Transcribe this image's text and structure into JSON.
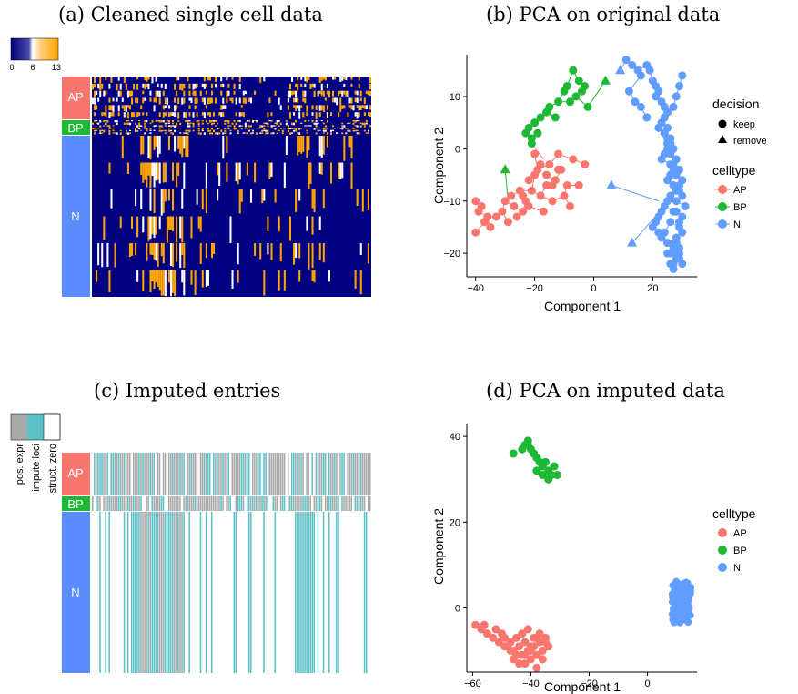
{
  "panels": {
    "a": {
      "title": "(a) Cleaned single cell data",
      "scale_ticks": [
        "0",
        "6",
        "13"
      ],
      "colors": {
        "low": "#000080",
        "mid": "#ffffff",
        "high": "#ffa500"
      },
      "groups": [
        {
          "label": "AP",
          "color": "#f8766d"
        },
        {
          "label": "BP",
          "color": "#1eb934"
        },
        {
          "label": "N",
          "color": "#5a8cff"
        }
      ]
    },
    "b": {
      "title": "(b) PCA on original data"
    },
    "c": {
      "title": "(c) Imputed entries",
      "legend_labels": [
        "pos. expr",
        "impute loci",
        "struct. zero"
      ],
      "colors": {
        "pos_expr": "#a9a9a9",
        "impute_loci": "#5bc2c7",
        "struct_zero": "#ffffff"
      },
      "groups": [
        {
          "label": "AP",
          "color": "#f8766d"
        },
        {
          "label": "BP",
          "color": "#1eb934"
        },
        {
          "label": "N",
          "color": "#5a8cff"
        }
      ]
    },
    "d": {
      "title": "(d) PCA on imputed data"
    }
  },
  "chart_data": [
    {
      "id": "heatmap-expression",
      "type": "heatmap",
      "title": "(a) Cleaned single cell data",
      "value_range": [
        0,
        13
      ],
      "row_groups": [
        "AP",
        "BP",
        "N"
      ]
    },
    {
      "id": "pca-original",
      "type": "scatter",
      "title": "(b) PCA on original data",
      "xlabel": "Component 1",
      "ylabel": "Component 2",
      "xlim": [
        -43,
        35
      ],
      "ylim": [
        -24.5,
        18
      ],
      "xticks": [
        -40,
        -20,
        0,
        20
      ],
      "yticks": [
        -20,
        -10,
        0,
        10
      ],
      "grid": false,
      "legend": {
        "shape_title": "decision",
        "shapes": [
          "keep",
          "remove"
        ],
        "color_title": "celltype",
        "colors": [
          {
            "name": "AP",
            "color": "#f8766d"
          },
          {
            "name": "BP",
            "color": "#1eb934"
          },
          {
            "name": "N",
            "color": "#619cff"
          }
        ]
      },
      "series": [
        {
          "name": "AP",
          "color": "#f8766d",
          "x": [
            -40,
            -38,
            -39,
            -36,
            -35,
            -37,
            -40,
            -33,
            -31,
            -29,
            -30,
            -28,
            -27,
            -25,
            -24,
            -26,
            -23,
            -21,
            -20,
            -22,
            -19,
            -18,
            -16,
            -15,
            -17,
            -13,
            -14,
            -12,
            -10,
            -11,
            -9,
            -7,
            -8,
            -5,
            -3,
            -20,
            -18,
            -16,
            -14,
            -12,
            -22,
            -24
          ],
          "y": [
            -10,
            -11,
            -12,
            -13,
            -15,
            -14,
            -16,
            -13,
            -12,
            -14,
            -10,
            -9,
            -11,
            -8,
            -12,
            -13,
            -10,
            -8,
            -5,
            -11,
            -4,
            -9,
            -7,
            -3,
            -12,
            -6,
            -10,
            -1,
            -9,
            -4,
            -7,
            -2,
            -11,
            -7,
            -3,
            -1,
            -3,
            -5,
            -7,
            -4,
            -6,
            -9
          ],
          "decision": "keep"
        },
        {
          "name": "AP-remove",
          "color": "#1eb934",
          "x": [
            -30
          ],
          "y": [
            -4
          ],
          "decision": "remove"
        },
        {
          "name": "BP",
          "color": "#1eb934",
          "x": [
            -23,
            -22,
            -20,
            -21,
            -19,
            -18,
            -16,
            -15,
            -13,
            -12,
            -10,
            -9,
            -8,
            -6,
            -7,
            -5,
            -4,
            -3,
            -2,
            -21
          ],
          "y": [
            3,
            4,
            5,
            2,
            3,
            6,
            7,
            8,
            6,
            9,
            11,
            12,
            9,
            10,
            15,
            13,
            11,
            12,
            8,
            1
          ],
          "decision": "keep"
        },
        {
          "name": "BP-remove",
          "color": "#1eb934",
          "x": [
            4
          ],
          "y": [
            13
          ],
          "decision": "remove"
        },
        {
          "name": "N",
          "color": "#619cff",
          "x": [
            11,
            13,
            15,
            16,
            18,
            19,
            20,
            21,
            22,
            21,
            23,
            24,
            25,
            24,
            23,
            22,
            24,
            25,
            26,
            25,
            24,
            23,
            26,
            27,
            26,
            25,
            27,
            28,
            26,
            25,
            24,
            23,
            22,
            21,
            20,
            22,
            23,
            25,
            27,
            28,
            29,
            27,
            26,
            25,
            24,
            26,
            27,
            28,
            29,
            30,
            29,
            28,
            27,
            26,
            25,
            24,
            27,
            28,
            29,
            30,
            29,
            28,
            27,
            26,
            25,
            28,
            29,
            30,
            31,
            30,
            29,
            28,
            27,
            26,
            25,
            24,
            28,
            29,
            30,
            28,
            29,
            30,
            12,
            14,
            16,
            18
          ],
          "y": [
            17,
            16,
            15,
            14,
            16,
            15,
            13,
            12,
            11,
            10,
            9,
            8,
            7,
            6,
            5,
            4,
            3,
            2,
            1,
            0,
            -1,
            -2,
            -3,
            -4,
            -5,
            -6,
            -7,
            -8,
            -9,
            -10,
            -11,
            -12,
            -13,
            -14,
            -15,
            -16,
            -17,
            -18,
            -19,
            -20,
            -21,
            -22,
            -20,
            -18,
            -16,
            -14,
            -12,
            -10,
            -8,
            -6,
            -4,
            -2,
            0,
            2,
            4,
            6,
            8,
            10,
            12,
            14,
            -19,
            -21,
            -23,
            -22,
            -20,
            -17,
            -15,
            -13,
            -11,
            -9,
            -7,
            -5,
            -3,
            -1,
            1,
            3,
            -12,
            -14,
            -16,
            -18,
            -20,
            -22,
            11,
            9,
            8,
            6
          ],
          "decision": "keep"
        },
        {
          "name": "N-remove",
          "color": "#619cff",
          "x": [
            9,
            6,
            13
          ],
          "y": [
            15,
            -7,
            -18
          ],
          "decision": "remove"
        }
      ]
    },
    {
      "id": "heatmap-imputed",
      "type": "heatmap",
      "title": "(c) Imputed entries",
      "categories": [
        "pos. expr",
        "impute loci",
        "struct. zero"
      ],
      "row_groups": [
        "AP",
        "BP",
        "N"
      ]
    },
    {
      "id": "pca-imputed",
      "type": "scatter",
      "title": "(d) PCA on imputed data",
      "xlabel": "Component 1",
      "ylabel": "Component 2",
      "xlim": [
        -62,
        17
      ],
      "ylim": [
        -15,
        43
      ],
      "xticks": [
        -60,
        -40,
        -20,
        0
      ],
      "yticks": [
        0,
        20,
        40
      ],
      "grid": false,
      "legend": {
        "color_title": "celltype",
        "colors": [
          {
            "name": "AP",
            "color": "#f8766d"
          },
          {
            "name": "BP",
            "color": "#1eb934"
          },
          {
            "name": "N",
            "color": "#619cff"
          }
        ]
      },
      "series": [
        {
          "name": "AP",
          "color": "#f8766d",
          "x": [
            -59,
            -57,
            -55,
            -56,
            -53,
            -52,
            -51,
            -50,
            -49,
            -48,
            -47,
            -46,
            -45,
            -44,
            -43,
            -42,
            -41,
            -40,
            -39,
            -38,
            -37,
            -36,
            -35,
            -34,
            -46,
            -44,
            -42,
            -40,
            -38,
            -36,
            -43,
            -41,
            -39,
            -37,
            -35,
            -45,
            -47,
            -49,
            -42,
            -38,
            -36,
            -40
          ],
          "y": [
            -4,
            -5,
            -6,
            -4,
            -7,
            -5,
            -8,
            -6,
            -7,
            -9,
            -8,
            -10,
            -7,
            -9,
            -11,
            -8,
            -10,
            -12,
            -9,
            -11,
            -8,
            -10,
            -7,
            -9,
            -12,
            -13,
            -11,
            -9,
            -7,
            -12,
            -6,
            -5,
            -7,
            -6,
            -8,
            -11,
            -10,
            -9,
            -13,
            -14,
            -12,
            -10
          ],
          "decision": "keep"
        },
        {
          "name": "BP",
          "color": "#1eb934",
          "x": [
            -46,
            -43,
            -42,
            -41,
            -40,
            -39,
            -38,
            -37,
            -36,
            -35,
            -34,
            -33,
            -32,
            -31,
            -38,
            -36,
            -34,
            -41,
            -39,
            -37
          ],
          "y": [
            36,
            37,
            38,
            39,
            37,
            36,
            35,
            34,
            33,
            34,
            32,
            31,
            33,
            31,
            32,
            31,
            30,
            38,
            36,
            34
          ],
          "decision": "keep"
        }
      ],
      "cluster_N": {
        "name": "N",
        "color": "#619cff",
        "center": [
          12,
          2
        ],
        "spread_x": [
          8.5,
          15
        ],
        "spread_y": [
          -3.5,
          6.5
        ]
      }
    }
  ]
}
